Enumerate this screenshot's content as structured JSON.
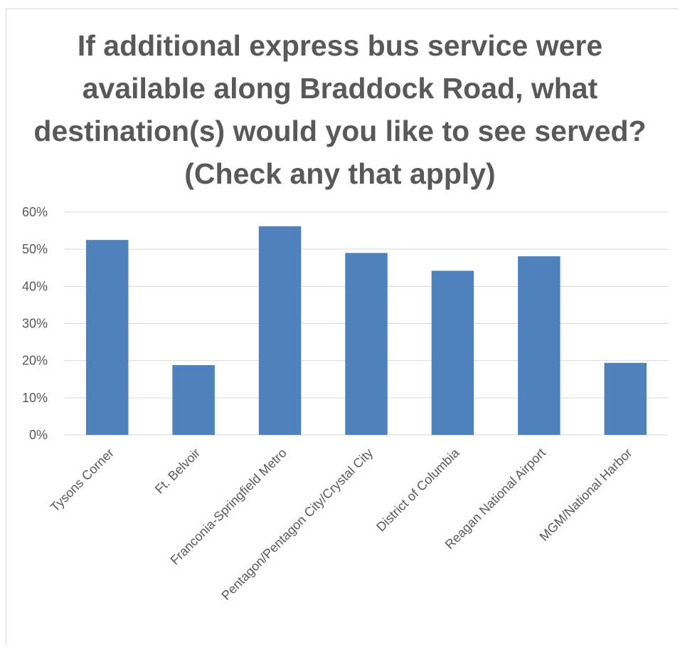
{
  "chart_data": {
    "type": "bar",
    "title": "If additional express bus service were available along Braddock Road, what destination(s) would you like to see served? (Check any that apply)",
    "categories": [
      "Tysons Corner",
      "Ft. Belvoir",
      "Franconia-Springfield Metro",
      "Pentagon/Pentagon City/Crystal City",
      "District of Columbia",
      "Reagan National Airport",
      "MGM/National Harbor"
    ],
    "series": [
      {
        "values": [
          52.5,
          18.8,
          56.2,
          49.0,
          44.2,
          48.1,
          19.4
        ]
      }
    ],
    "y_ticks": [
      "0%",
      "10%",
      "20%",
      "30%",
      "40%",
      "50%",
      "60%"
    ],
    "ylim": [
      0,
      60
    ],
    "grid": true,
    "legend": "none",
    "colors": {
      "bar": "#4f81bd",
      "grid": "#d9d9d9",
      "text": "#595959"
    }
  }
}
